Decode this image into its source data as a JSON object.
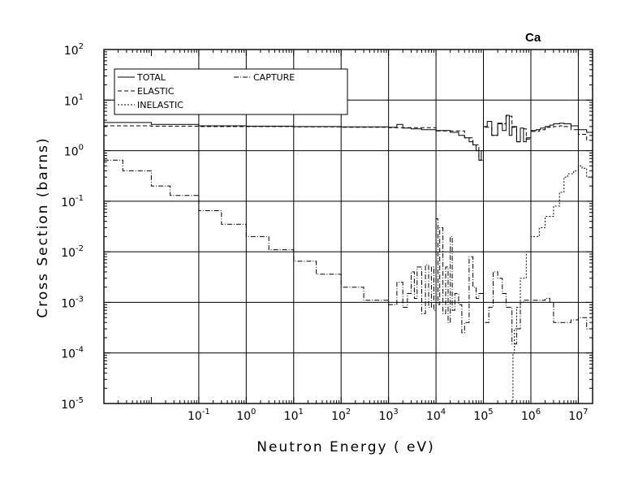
{
  "chart_data": {
    "type": "line",
    "title": "Ca",
    "xlabel": "Neutron Energy ( eV)",
    "ylabel": "Cross Section (barns)",
    "x_scale": "log",
    "y_scale": "log",
    "xlim": [
      0.001,
      20000000
    ],
    "ylim": [
      1e-05,
      100
    ],
    "grid": true,
    "legend_position": "top-left",
    "x_ticks": [
      {
        "base": "10",
        "exp": "-1",
        "value": 0.1
      },
      {
        "base": "10",
        "exp": "0",
        "value": 1
      },
      {
        "base": "10",
        "exp": "1",
        "value": 10
      },
      {
        "base": "10",
        "exp": "2",
        "value": 100
      },
      {
        "base": "10",
        "exp": "3",
        "value": 1000
      },
      {
        "base": "10",
        "exp": "4",
        "value": 10000
      },
      {
        "base": "10",
        "exp": "5",
        "value": 100000
      },
      {
        "base": "10",
        "exp": "6",
        "value": 1000000
      },
      {
        "base": "10",
        "exp": "7",
        "value": 10000000
      }
    ],
    "y_ticks": [
      {
        "base": "10",
        "exp": "2",
        "value": 100
      },
      {
        "base": "10",
        "exp": "1",
        "value": 10
      },
      {
        "base": "10",
        "exp": "0",
        "value": 1
      },
      {
        "base": "10",
        "exp": "-1",
        "value": 0.1
      },
      {
        "base": "10",
        "exp": "-2",
        "value": 0.01
      },
      {
        "base": "10",
        "exp": "-3",
        "value": 0.001
      },
      {
        "base": "10",
        "exp": "-4",
        "value": 0.0001
      },
      {
        "base": "10",
        "exp": "-5",
        "value": 1e-05
      }
    ],
    "series": [
      {
        "name": "TOTAL",
        "dash": "solid",
        "x": [
          0.001,
          0.01,
          0.1,
          1,
          10,
          100,
          1000,
          1500,
          2000,
          3000,
          5000,
          10000,
          20000,
          30000,
          40000,
          50000,
          60000,
          70000,
          80000,
          90000,
          100000,
          120000,
          150000,
          200000,
          250000,
          300000,
          350000,
          400000,
          500000,
          600000,
          700000,
          800000,
          1000000,
          1300000,
          1600000,
          2000000,
          2500000,
          3000000,
          4000000,
          5000000,
          7000000,
          10000000,
          15000000,
          20000000
        ],
        "y": [
          3.6,
          3.3,
          3.1,
          3.05,
          3.0,
          2.95,
          2.9,
          3.3,
          2.8,
          2.7,
          2.6,
          2.5,
          2.3,
          2.0,
          1.8,
          1.5,
          1.3,
          1.0,
          0.65,
          1.0,
          3.0,
          3.8,
          2.0,
          3.5,
          2.5,
          5.0,
          2.0,
          3.0,
          1.5,
          2.8,
          1.5,
          1.8,
          2.5,
          2.6,
          2.8,
          3.0,
          3.2,
          3.4,
          3.5,
          3.4,
          3.1,
          2.6,
          2.3,
          2.0
        ]
      },
      {
        "name": "ELASTIC",
        "dash": "dashed",
        "x": [
          0.001,
          0.01,
          0.1,
          1,
          10,
          100,
          1000,
          10000,
          40000,
          60000,
          80000,
          100000,
          150000,
          200000,
          300000,
          400000,
          500000,
          600000,
          800000,
          1000000,
          1500000,
          2000000,
          3000000,
          4000000,
          5000000,
          7000000,
          10000000,
          15000000,
          20000000
        ],
        "y": [
          3.1,
          3.05,
          3.0,
          3.0,
          2.95,
          2.9,
          2.85,
          2.45,
          1.8,
          1.3,
          0.65,
          2.9,
          2.0,
          3.4,
          4.8,
          2.9,
          1.5,
          2.7,
          1.7,
          2.4,
          2.6,
          2.9,
          3.0,
          3.1,
          3.0,
          2.6,
          2.1,
          1.6,
          1.2
        ]
      },
      {
        "name": "INELASTIC",
        "dash": "dotted",
        "x": [
          400000,
          420000,
          450000,
          500000,
          600000,
          800000,
          1000000,
          1500000,
          2000000,
          3000000,
          4000000,
          5000000,
          6000000,
          8000000,
          10000000,
          12000000,
          15000000,
          20000000
        ],
        "y": [
          1e-05,
          0.0001,
          0.0003,
          0.0008,
          0.003,
          0.01,
          0.02,
          0.03,
          0.05,
          0.08,
          0.15,
          0.3,
          0.35,
          0.4,
          0.5,
          0.45,
          0.3,
          0.18
        ]
      },
      {
        "name": "CAPTURE",
        "dash": "dashdot",
        "x": [
          0.001,
          0.0025,
          0.01,
          0.025,
          0.1,
          0.3,
          1,
          3,
          10,
          30,
          100,
          300,
          1000,
          1500,
          2000,
          2500,
          3000,
          3500,
          4000,
          5000,
          6000,
          7000,
          8000,
          9000,
          10000,
          11000,
          12000,
          14000,
          16000,
          18000,
          20000,
          22000,
          25000,
          30000,
          35000,
          40000,
          50000,
          60000,
          70000,
          80000,
          100000,
          130000,
          160000,
          200000,
          250000,
          300000,
          400000,
          500000,
          600000,
          700000,
          1000000,
          1500000,
          2000000,
          2500000,
          3000000,
          5000000,
          7000000,
          10000000,
          15000000,
          20000000
        ],
        "y": [
          0.65,
          0.4,
          0.2,
          0.13,
          0.065,
          0.035,
          0.02,
          0.011,
          0.0065,
          0.0036,
          0.002,
          0.0011,
          0.0009,
          0.0025,
          0.0008,
          0.0015,
          0.004,
          0.0012,
          0.005,
          0.0006,
          0.0055,
          0.0008,
          0.005,
          0.0007,
          0.045,
          0.0009,
          0.03,
          0.0006,
          0.005,
          0.0004,
          0.02,
          0.0007,
          0.0015,
          0.0009,
          0.00025,
          0.0004,
          0.008,
          0.002,
          0.0012,
          0.0015,
          0.0004,
          0.0008,
          0.004,
          0.003,
          0.0015,
          0.0008,
          0.00015,
          0.0003,
          0.001,
          0.0011,
          0.0011,
          0.0011,
          0.0012,
          0.001,
          0.0004,
          0.0004,
          0.00045,
          0.0005,
          0.0003,
          0.00025
        ]
      }
    ]
  }
}
